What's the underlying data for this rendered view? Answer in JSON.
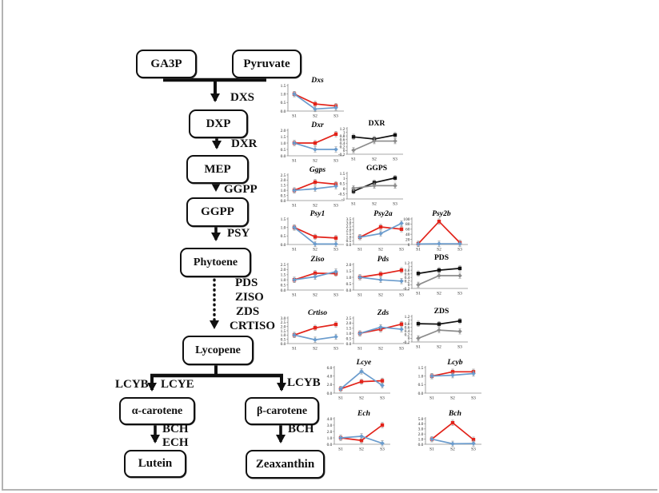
{
  "figure": {
    "type": "carotenoid-biosynthesis-pathway-with-expression-charts",
    "x_labels": [
      "S1",
      "S2",
      "S3"
    ]
  },
  "colors": {
    "red": "#e2231a",
    "blue": "#6b9ccd",
    "black": "#111111",
    "gray": "#8c8c8c",
    "box_border": "#101010"
  },
  "pathway": {
    "nodes": [
      {
        "label": "GA3P"
      },
      {
        "label": "Pyruvate"
      },
      {
        "label": "DXP"
      },
      {
        "label": "MEP"
      },
      {
        "label": "GGPP"
      },
      {
        "label": "Phytoene"
      },
      {
        "label": "Lycopene"
      },
      {
        "label": "α-carotene"
      },
      {
        "label": "β-carotene"
      },
      {
        "label": "Lutein"
      },
      {
        "label": "Zeaxanthin"
      }
    ],
    "enzymes": [
      {
        "label": "DXS"
      },
      {
        "label": "DXR"
      },
      {
        "label": "GGPP"
      },
      {
        "label": "PSY"
      },
      {
        "label": "PDS"
      },
      {
        "label": "ZISO"
      },
      {
        "label": "ZDS"
      },
      {
        "label": "CRTISO"
      },
      {
        "label": "LCYB"
      },
      {
        "label": "LCYE"
      },
      {
        "label": "LCYB"
      },
      {
        "label": "BCH"
      },
      {
        "label": "ECH"
      },
      {
        "label": "BCH"
      }
    ]
  },
  "chart_data": [
    {
      "id": "dxs",
      "type": "line",
      "title": "Dxs",
      "style": "gene",
      "x": [
        "S1",
        "S2",
        "S3"
      ],
      "ylim": [
        0,
        1.5
      ],
      "ytick_labels": [
        "0.0",
        "0.5",
        "1.0",
        "1.5"
      ],
      "series": [
        {
          "color": "red",
          "marker": "square",
          "values": [
            1.0,
            0.42,
            0.3
          ]
        },
        {
          "color": "blue",
          "marker": "diamond",
          "values": [
            1.0,
            0.12,
            0.2
          ]
        }
      ]
    },
    {
      "id": "dxr",
      "type": "line",
      "title": "Dxr",
      "style": "gene",
      "x": [
        "S1",
        "S2",
        "S3"
      ],
      "ylim": [
        0,
        2
      ],
      "ytick_labels": [
        "0.0",
        "0.5",
        "1.0",
        "1.5",
        "2.0"
      ],
      "series": [
        {
          "color": "red",
          "marker": "square",
          "values": [
            1.0,
            1.0,
            1.7
          ]
        },
        {
          "color": "blue",
          "marker": "diamond",
          "values": [
            1.0,
            0.5,
            0.5
          ]
        }
      ]
    },
    {
      "id": "DXR",
      "type": "line",
      "title": "DXR",
      "style": "protein",
      "x": [
        "S1",
        "S2",
        "S3"
      ],
      "ylim": [
        -0.2,
        1.2
      ],
      "ytick_labels": [
        "-0.2",
        "0",
        "0.2",
        "0.4",
        "0.6",
        "0.8",
        "1",
        "1.2"
      ],
      "series": [
        {
          "color": "black",
          "marker": "square",
          "values": [
            0.75,
            0.63,
            0.85
          ]
        },
        {
          "color": "gray",
          "marker": "diamond",
          "values": [
            0.02,
            0.52,
            0.52
          ]
        }
      ]
    },
    {
      "id": "ggps",
      "type": "line",
      "title": "Ggps",
      "style": "gene",
      "x": [
        "S1",
        "S2",
        "S3"
      ],
      "ylim": [
        0,
        2.5
      ],
      "ytick_labels": [
        "0.0",
        "0.5",
        "1.0",
        "1.5",
        "2.0",
        "2.5"
      ],
      "series": [
        {
          "color": "red",
          "marker": "square",
          "values": [
            1.0,
            1.8,
            1.6
          ]
        },
        {
          "color": "blue",
          "marker": "diamond",
          "values": [
            1.0,
            1.15,
            1.4
          ]
        }
      ]
    },
    {
      "id": "GGPS",
      "type": "line",
      "title": "GGPS",
      "style": "protein",
      "x": [
        "S1",
        "S2",
        "S3"
      ],
      "ylim": [
        -1,
        1.5
      ],
      "ytick_labels": [
        "-1",
        "-0.5",
        "0",
        "0.5",
        "1",
        "1.5"
      ],
      "series": [
        {
          "color": "black",
          "marker": "square",
          "values": [
            -0.25,
            0.6,
            1.05
          ]
        },
        {
          "color": "gray",
          "marker": "diamond",
          "values": [
            0.05,
            0.3,
            0.3
          ]
        }
      ]
    },
    {
      "id": "psy1",
      "type": "line",
      "title": "Psy1",
      "style": "gene",
      "x": [
        "S1",
        "S2",
        "S3"
      ],
      "ylim": [
        0,
        1.5
      ],
      "ytick_labels": [
        "0.0",
        "0.5",
        "1.0",
        "1.5"
      ],
      "series": [
        {
          "color": "red",
          "marker": "square",
          "values": [
            1.0,
            0.45,
            0.38
          ]
        },
        {
          "color": "blue",
          "marker": "diamond",
          "values": [
            1.0,
            0.03,
            0.03
          ]
        }
      ]
    },
    {
      "id": "psy2a",
      "type": "line",
      "title": "Psy2a",
      "style": "gene",
      "x": [
        "S1",
        "S2",
        "S3"
      ],
      "ylim": [
        0,
        3.5
      ],
      "ytick_labels": [
        "0.0",
        "0.5",
        "1.0",
        "1.5",
        "2.0",
        "2.5",
        "3.0",
        "3.5"
      ],
      "series": [
        {
          "color": "red",
          "marker": "square",
          "values": [
            1.0,
            2.4,
            2.1
          ]
        },
        {
          "color": "blue",
          "marker": "diamond",
          "values": [
            1.0,
            1.5,
            2.9
          ]
        }
      ]
    },
    {
      "id": "psy2b",
      "type": "line",
      "title": "Psy2b",
      "style": "gene",
      "x": [
        "S1",
        "S2",
        "S3"
      ],
      "ylim": [
        0,
        100
      ],
      "ytick_labels": [
        "0",
        "20",
        "40",
        "60",
        "80",
        "100"
      ],
      "series": [
        {
          "color": "red",
          "marker": "square",
          "values": [
            3,
            90,
            7
          ]
        },
        {
          "color": "blue",
          "marker": "diamond",
          "values": [
            2,
            3,
            3
          ]
        }
      ]
    },
    {
      "id": "ziso",
      "type": "line",
      "title": "Ziso",
      "style": "gene",
      "x": [
        "S1",
        "S2",
        "S3"
      ],
      "ylim": [
        0,
        2.5
      ],
      "ytick_labels": [
        "0.0",
        "0.5",
        "1.0",
        "1.5",
        "2.0",
        "2.5"
      ],
      "series": [
        {
          "color": "red",
          "marker": "square",
          "values": [
            1.0,
            1.65,
            1.6
          ]
        },
        {
          "color": "blue",
          "marker": "diamond",
          "values": [
            1.0,
            1.3,
            1.8
          ]
        }
      ]
    },
    {
      "id": "pds",
      "type": "line",
      "title": "Pds",
      "style": "gene",
      "x": [
        "S1",
        "S2",
        "S3"
      ],
      "ylim": [
        0,
        2
      ],
      "ytick_labels": [
        "0.0",
        "0.5",
        "1.0",
        "1.5",
        "2.0"
      ],
      "series": [
        {
          "color": "red",
          "marker": "square",
          "values": [
            1.0,
            1.25,
            1.55
          ]
        },
        {
          "color": "blue",
          "marker": "diamond",
          "values": [
            1.0,
            0.8,
            0.7
          ]
        }
      ]
    },
    {
      "id": "PDS",
      "type": "line",
      "title": "PDS",
      "style": "protein",
      "x": [
        "S1",
        "S2",
        "S3"
      ],
      "ylim": [
        -0.2,
        1.2
      ],
      "ytick_labels": [
        "-0.2",
        "0",
        "0.2",
        "0.4",
        "0.6",
        "0.8",
        "1",
        "1.2"
      ],
      "series": [
        {
          "color": "black",
          "marker": "square",
          "values": [
            0.62,
            0.8,
            0.9
          ]
        },
        {
          "color": "gray",
          "marker": "diamond",
          "values": [
            0.0,
            0.5,
            0.5
          ]
        }
      ]
    },
    {
      "id": "crtiso",
      "type": "line",
      "title": "Crtiso",
      "style": "gene",
      "x": [
        "S1",
        "S2",
        "S3"
      ],
      "ylim": [
        0,
        3
      ],
      "ytick_labels": [
        "0.0",
        "0.5",
        "1.0",
        "1.5",
        "2.0",
        "2.5",
        "3.0"
      ],
      "series": [
        {
          "color": "red",
          "marker": "square",
          "values": [
            1.0,
            1.85,
            2.25
          ]
        },
        {
          "color": "blue",
          "marker": "diamond",
          "values": [
            1.0,
            0.45,
            0.8
          ]
        }
      ]
    },
    {
      "id": "zds",
      "type": "line",
      "title": "Zds",
      "style": "gene",
      "x": [
        "S1",
        "S2",
        "S3"
      ],
      "ylim": [
        0,
        2.5
      ],
      "ytick_labels": [
        "0.0",
        "0.5",
        "1.0",
        "1.5",
        "2.0",
        "2.5"
      ],
      "series": [
        {
          "color": "red",
          "marker": "square",
          "values": [
            1.0,
            1.4,
            1.9
          ]
        },
        {
          "color": "blue",
          "marker": "diamond",
          "values": [
            1.0,
            1.6,
            1.4
          ]
        }
      ]
    },
    {
      "id": "ZDS",
      "type": "line",
      "title": "ZDS",
      "style": "protein",
      "x": [
        "S1",
        "S2",
        "S3"
      ],
      "ylim": [
        -0.2,
        1.2
      ],
      "ytick_labels": [
        "-0.2",
        "0",
        "0.2",
        "0.4",
        "0.6",
        "0.8",
        "1",
        "1.2"
      ],
      "series": [
        {
          "color": "black",
          "marker": "square",
          "values": [
            0.8,
            0.78,
            0.95
          ]
        },
        {
          "color": "gray",
          "marker": "diamond",
          "values": [
            0.0,
            0.45,
            0.38
          ]
        }
      ]
    },
    {
      "id": "lcye",
      "type": "line",
      "title": "Lcye",
      "style": "gene",
      "x": [
        "S1",
        "S2",
        "S3"
      ],
      "ylim": [
        0,
        6
      ],
      "ytick_labels": [
        "0.0",
        "2.0",
        "4.0",
        "6.0"
      ],
      "series": [
        {
          "color": "red",
          "marker": "square",
          "values": [
            1.0,
            2.7,
            2.9
          ]
        },
        {
          "color": "blue",
          "marker": "diamond",
          "values": [
            1.0,
            5.1,
            1.8
          ]
        }
      ]
    },
    {
      "id": "lcyb",
      "type": "line",
      "title": "Lcyb",
      "style": "gene",
      "x": [
        "S1",
        "S2",
        "S3"
      ],
      "ylim": [
        0,
        1.5
      ],
      "ytick_labels": [
        "0.0",
        "0.5",
        "1.0",
        "1.5"
      ],
      "series": [
        {
          "color": "red",
          "marker": "square",
          "values": [
            1.0,
            1.25,
            1.25
          ]
        },
        {
          "color": "blue",
          "marker": "diamond",
          "values": [
            1.0,
            1.05,
            1.15
          ]
        }
      ]
    },
    {
      "id": "ech",
      "type": "line",
      "title": "Ech",
      "style": "gene",
      "x": [
        "S1",
        "S2",
        "S3"
      ],
      "ylim": [
        0,
        4
      ],
      "ytick_labels": [
        "0.0",
        "1.0",
        "2.0",
        "3.0",
        "4.0"
      ],
      "series": [
        {
          "color": "red",
          "marker": "square",
          "values": [
            1.0,
            0.6,
            3.0
          ]
        },
        {
          "color": "blue",
          "marker": "diamond",
          "values": [
            1.0,
            1.25,
            0.15
          ]
        }
      ]
    },
    {
      "id": "bch",
      "type": "line",
      "title": "Bch",
      "style": "gene",
      "x": [
        "S1",
        "S2",
        "S3"
      ],
      "ylim": [
        0,
        5
      ],
      "ytick_labels": [
        "0.0",
        "1.0",
        "2.0",
        "3.0",
        "4.0",
        "5.0"
      ],
      "series": [
        {
          "color": "red",
          "marker": "square",
          "values": [
            1.0,
            4.2,
            0.9
          ]
        },
        {
          "color": "blue",
          "marker": "diamond",
          "values": [
            1.0,
            0.1,
            0.15
          ]
        }
      ]
    }
  ]
}
